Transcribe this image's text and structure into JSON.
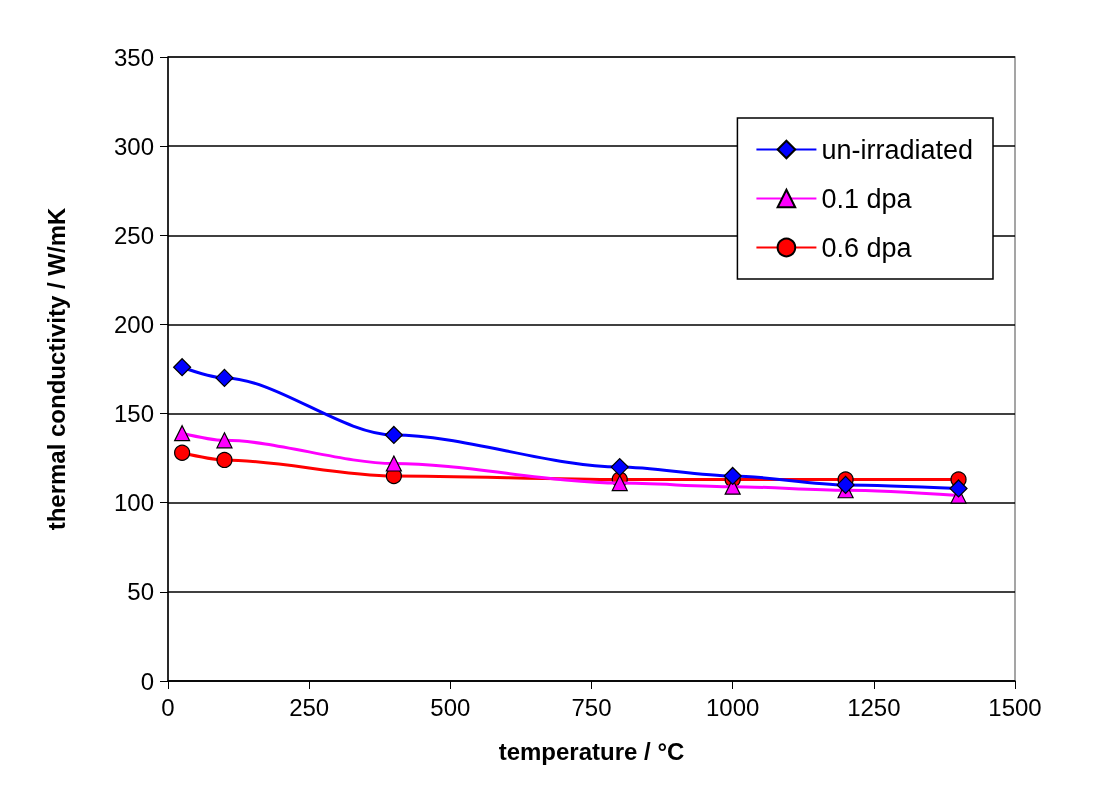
{
  "chart_data": {
    "type": "line",
    "xlabel": "temperature / °C",
    "ylabel": "thermal conductivity / W/mK",
    "x": [
      25,
      100,
      400,
      800,
      1000,
      1200,
      1400
    ],
    "series": [
      {
        "name": "un-irradiated",
        "color": "#0000ff",
        "marker": "diamond",
        "values": [
          176,
          170,
          138,
          120,
          115,
          110,
          108
        ]
      },
      {
        "name": "0.1 dpa",
        "color": "#ff00ff",
        "marker": "triangle",
        "values": [
          139,
          135,
          122,
          111,
          109,
          107,
          104
        ]
      },
      {
        "name": "0.6 dpa",
        "color": "#ff0000",
        "marker": "circle",
        "values": [
          128,
          124,
          115,
          113,
          113,
          113,
          113
        ]
      }
    ],
    "xlim": [
      0,
      1500
    ],
    "xticks": [
      0,
      250,
      500,
      750,
      1000,
      1250,
      1500
    ],
    "ylim": [
      0,
      350
    ],
    "yticks": [
      0,
      50,
      100,
      150,
      200,
      250,
      300,
      350
    ],
    "grid": "y",
    "legend": "top right",
    "line_style": "solid"
  }
}
